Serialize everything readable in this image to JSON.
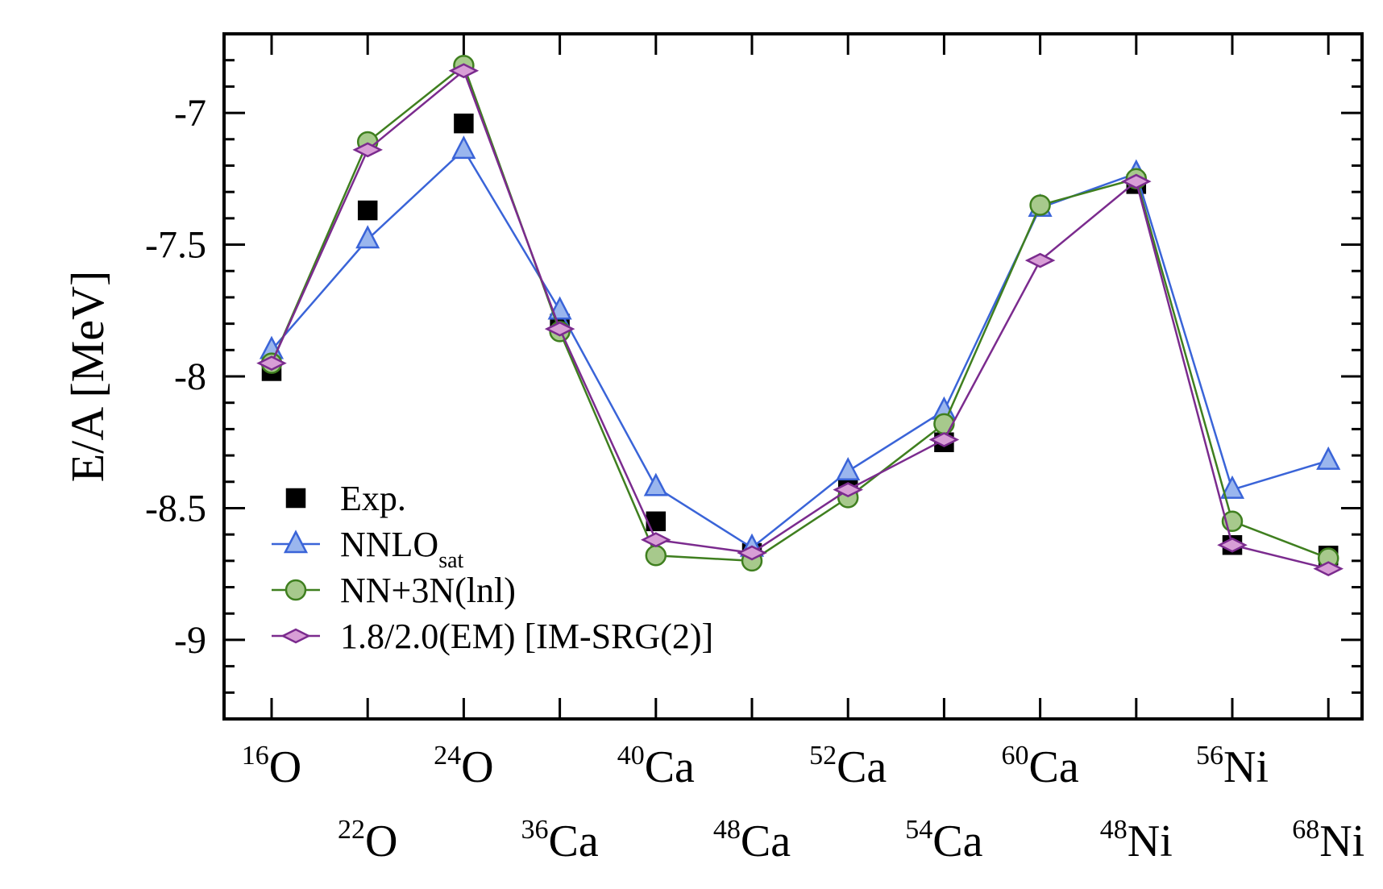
{
  "chart_data": {
    "type": "line",
    "ylabel": "E/A [MeV]",
    "ylim": [
      -9.3,
      -6.7
    ],
    "yticks": [
      "-7",
      "-7.5",
      "-8",
      "-8.5",
      "-9"
    ],
    "yticks_values": [
      -7,
      -7.5,
      -8,
      -8.5,
      -9
    ],
    "categories": [
      {
        "mass": "16",
        "element": "O"
      },
      {
        "mass": "22",
        "element": "O"
      },
      {
        "mass": "24",
        "element": "O"
      },
      {
        "mass": "36",
        "element": "Ca"
      },
      {
        "mass": "40",
        "element": "Ca"
      },
      {
        "mass": "48",
        "element": "Ca"
      },
      {
        "mass": "52",
        "element": "Ca"
      },
      {
        "mass": "54",
        "element": "Ca"
      },
      {
        "mass": "60",
        "element": "Ca"
      },
      {
        "mass": "48",
        "element": "Ni"
      },
      {
        "mass": "56",
        "element": "Ni"
      },
      {
        "mass": "68",
        "element": "Ni"
      }
    ],
    "series": [
      {
        "name": "Exp.",
        "name_sub": "",
        "marker": "square",
        "line": false,
        "color": "#000000",
        "fill": "#000000",
        "values": [
          -7.98,
          -7.37,
          -7.04,
          -7.8,
          -8.55,
          -8.67,
          -8.43,
          -8.25,
          null,
          -7.27,
          -8.64,
          -8.68
        ]
      },
      {
        "name": "NNLO",
        "name_sub": "sat",
        "marker": "triangle",
        "line": true,
        "color": "#3a64d8",
        "fill": "#9ab6ee",
        "values": [
          -7.9,
          -7.48,
          -7.14,
          -7.75,
          -8.42,
          -8.65,
          -8.36,
          -8.13,
          -7.36,
          -7.23,
          -8.43,
          -8.32
        ]
      },
      {
        "name": "NN+3N(lnl)",
        "name_sub": "",
        "marker": "circle",
        "line": true,
        "color": "#3f7f1f",
        "fill": "#a7c98c",
        "values": [
          -7.95,
          -7.11,
          -6.82,
          -7.83,
          -8.68,
          -8.7,
          -8.46,
          -8.18,
          -7.35,
          -7.25,
          -8.55,
          -8.69
        ]
      },
      {
        "name": "1.8/2.0(EM) [IM-SRG(2)]",
        "name_sub": "",
        "marker": "diamond",
        "line": true,
        "color": "#7b2b8e",
        "fill": "#d89ed6",
        "values": [
          -7.95,
          -7.14,
          -6.84,
          -7.82,
          -8.62,
          -8.67,
          -8.43,
          -8.24,
          -7.56,
          -7.26,
          -8.64,
          -8.73
        ]
      }
    ],
    "legend_position": "bottom-left",
    "grid": false
  }
}
